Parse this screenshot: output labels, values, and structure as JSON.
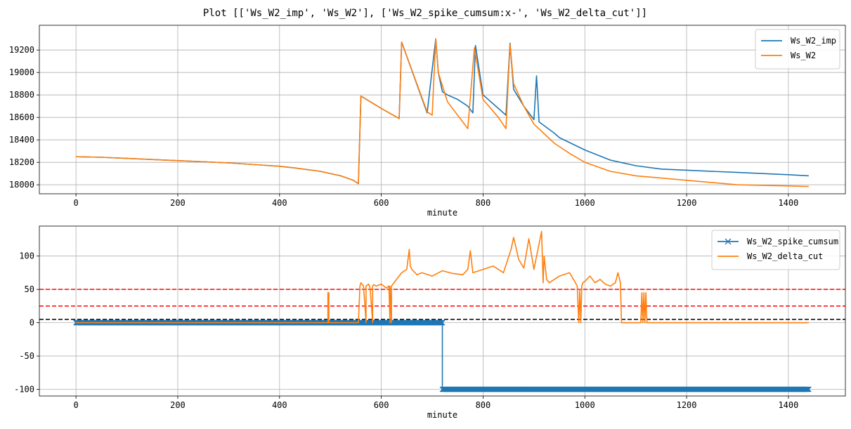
{
  "figure": {
    "title": "Plot [['Ws_W2_imp', 'Ws_W2'], ['Ws_W2_spike_cumsum:x-', 'Ws_W2_delta_cut']]",
    "colors": {
      "blue": "#1f77b4",
      "orange": "#ff7f0e",
      "red": "#ff0000",
      "black": "#000000",
      "grid": "#b0b0b0"
    }
  },
  "chart_data": [
    {
      "type": "line",
      "xlabel": "minute",
      "ylabel": "",
      "xlim": [
        -72,
        1512
      ],
      "ylim": [
        17920,
        19420
      ],
      "xticks": [
        0,
        200,
        400,
        600,
        800,
        1000,
        1200,
        1400
      ],
      "yticks": [
        18000,
        18200,
        18400,
        18600,
        18800,
        19000,
        19200
      ],
      "grid": true,
      "legend_position": "top-right",
      "series": [
        {
          "name": "Ws_W2_imp",
          "color": "#1f77b4",
          "x": [
            0,
            50,
            100,
            200,
            300,
            400,
            430,
            480,
            520,
            545,
            555,
            560,
            600,
            635,
            640,
            690,
            707,
            712,
            720,
            730,
            750,
            770,
            780,
            785,
            800,
            830,
            845,
            853,
            860,
            880,
            900,
            905,
            910,
            940,
            950,
            1000,
            1050,
            1100,
            1150,
            1200,
            1300,
            1400,
            1440
          ],
          "y": [
            18250,
            18245,
            18235,
            18215,
            18195,
            18165,
            18150,
            18120,
            18080,
            18040,
            18010,
            18790,
            18680,
            18590,
            19270,
            18640,
            19300,
            19000,
            18830,
            18800,
            18760,
            18700,
            18640,
            19240,
            18800,
            18680,
            18620,
            19260,
            18850,
            18700,
            18580,
            18970,
            18560,
            18460,
            18420,
            18310,
            18220,
            18170,
            18140,
            18130,
            18110,
            18090,
            18080
          ]
        },
        {
          "name": "Ws_W2",
          "color": "#ff7f0e",
          "x": [
            0,
            50,
            100,
            200,
            300,
            400,
            430,
            480,
            520,
            545,
            555,
            560,
            600,
            635,
            640,
            690,
            700,
            707,
            712,
            730,
            760,
            770,
            783,
            800,
            830,
            845,
            853,
            860,
            880,
            900,
            940,
            970,
            1000,
            1050,
            1100,
            1150,
            1200,
            1300,
            1400,
            1440
          ],
          "y": [
            18250,
            18245,
            18235,
            18215,
            18195,
            18165,
            18150,
            18120,
            18080,
            18040,
            18010,
            18790,
            18680,
            18590,
            19270,
            18650,
            18620,
            19300,
            19000,
            18740,
            18560,
            18500,
            19220,
            18760,
            18600,
            18500,
            19250,
            18900,
            18700,
            18540,
            18370,
            18280,
            18200,
            18120,
            18080,
            18060,
            18040,
            18000,
            17990,
            17985
          ]
        }
      ]
    },
    {
      "type": "line",
      "xlabel": "minute",
      "ylabel": "",
      "xlim": [
        -72,
        1512
      ],
      "ylim": [
        -110,
        145
      ],
      "xticks": [
        0,
        200,
        400,
        600,
        800,
        1000,
        1200,
        1400
      ],
      "yticks": [
        -100,
        -50,
        0,
        50,
        100
      ],
      "grid": true,
      "legend_position": "top-right",
      "hlines": [
        {
          "y": 50,
          "color": "#ff0000",
          "style": "dashed"
        },
        {
          "y": 25,
          "color": "#ff0000",
          "style": "dashed"
        },
        {
          "y": 5,
          "color": "#000000",
          "style": "dashed"
        }
      ],
      "series": [
        {
          "name": "Ws_W2_spike_cumsum",
          "color": "#1f77b4",
          "marker": "x",
          "marker_step": 1,
          "x": [
            0,
            720,
            720,
            1440
          ],
          "y": [
            0,
            0,
            -100,
            -100
          ]
        },
        {
          "name": "Ws_W2_delta_cut",
          "color": "#ff7f0e",
          "x": [
            0,
            495,
            495,
            497,
            497,
            555,
            558,
            560,
            565,
            570,
            570,
            575,
            578,
            583,
            583,
            585,
            590,
            600,
            610,
            615,
            617,
            617,
            620,
            620,
            630,
            640,
            650,
            655,
            657,
            660,
            670,
            680,
            700,
            720,
            740,
            760,
            770,
            775,
            780,
            800,
            820,
            840,
            855,
            860,
            870,
            880,
            890,
            900,
            915,
            918,
            920,
            925,
            930,
            950,
            970,
            980,
            985,
            988,
            990,
            992,
            994,
            996,
            1000,
            1010,
            1020,
            1030,
            1040,
            1050,
            1060,
            1065,
            1070,
            1072,
            1080,
            1110,
            1112,
            1114,
            1116,
            1118,
            1120,
            1122,
            1200,
            1300,
            1440
          ],
          "y": [
            0,
            0,
            45,
            45,
            0,
            0,
            55,
            60,
            55,
            0,
            55,
            58,
            52,
            0,
            55,
            57,
            55,
            58,
            52,
            55,
            0,
            55,
            0,
            55,
            65,
            75,
            80,
            110,
            85,
            80,
            72,
            75,
            70,
            78,
            74,
            72,
            80,
            108,
            75,
            80,
            85,
            75,
            110,
            128,
            95,
            82,
            126,
            80,
            137,
            60,
            100,
            65,
            60,
            70,
            75,
            62,
            55,
            0,
            50,
            0,
            55,
            60,
            62,
            70,
            60,
            65,
            58,
            55,
            60,
            75,
            60,
            0,
            0,
            0,
            45,
            0,
            45,
            0,
            45,
            0,
            0,
            0,
            0
          ]
        }
      ]
    }
  ]
}
